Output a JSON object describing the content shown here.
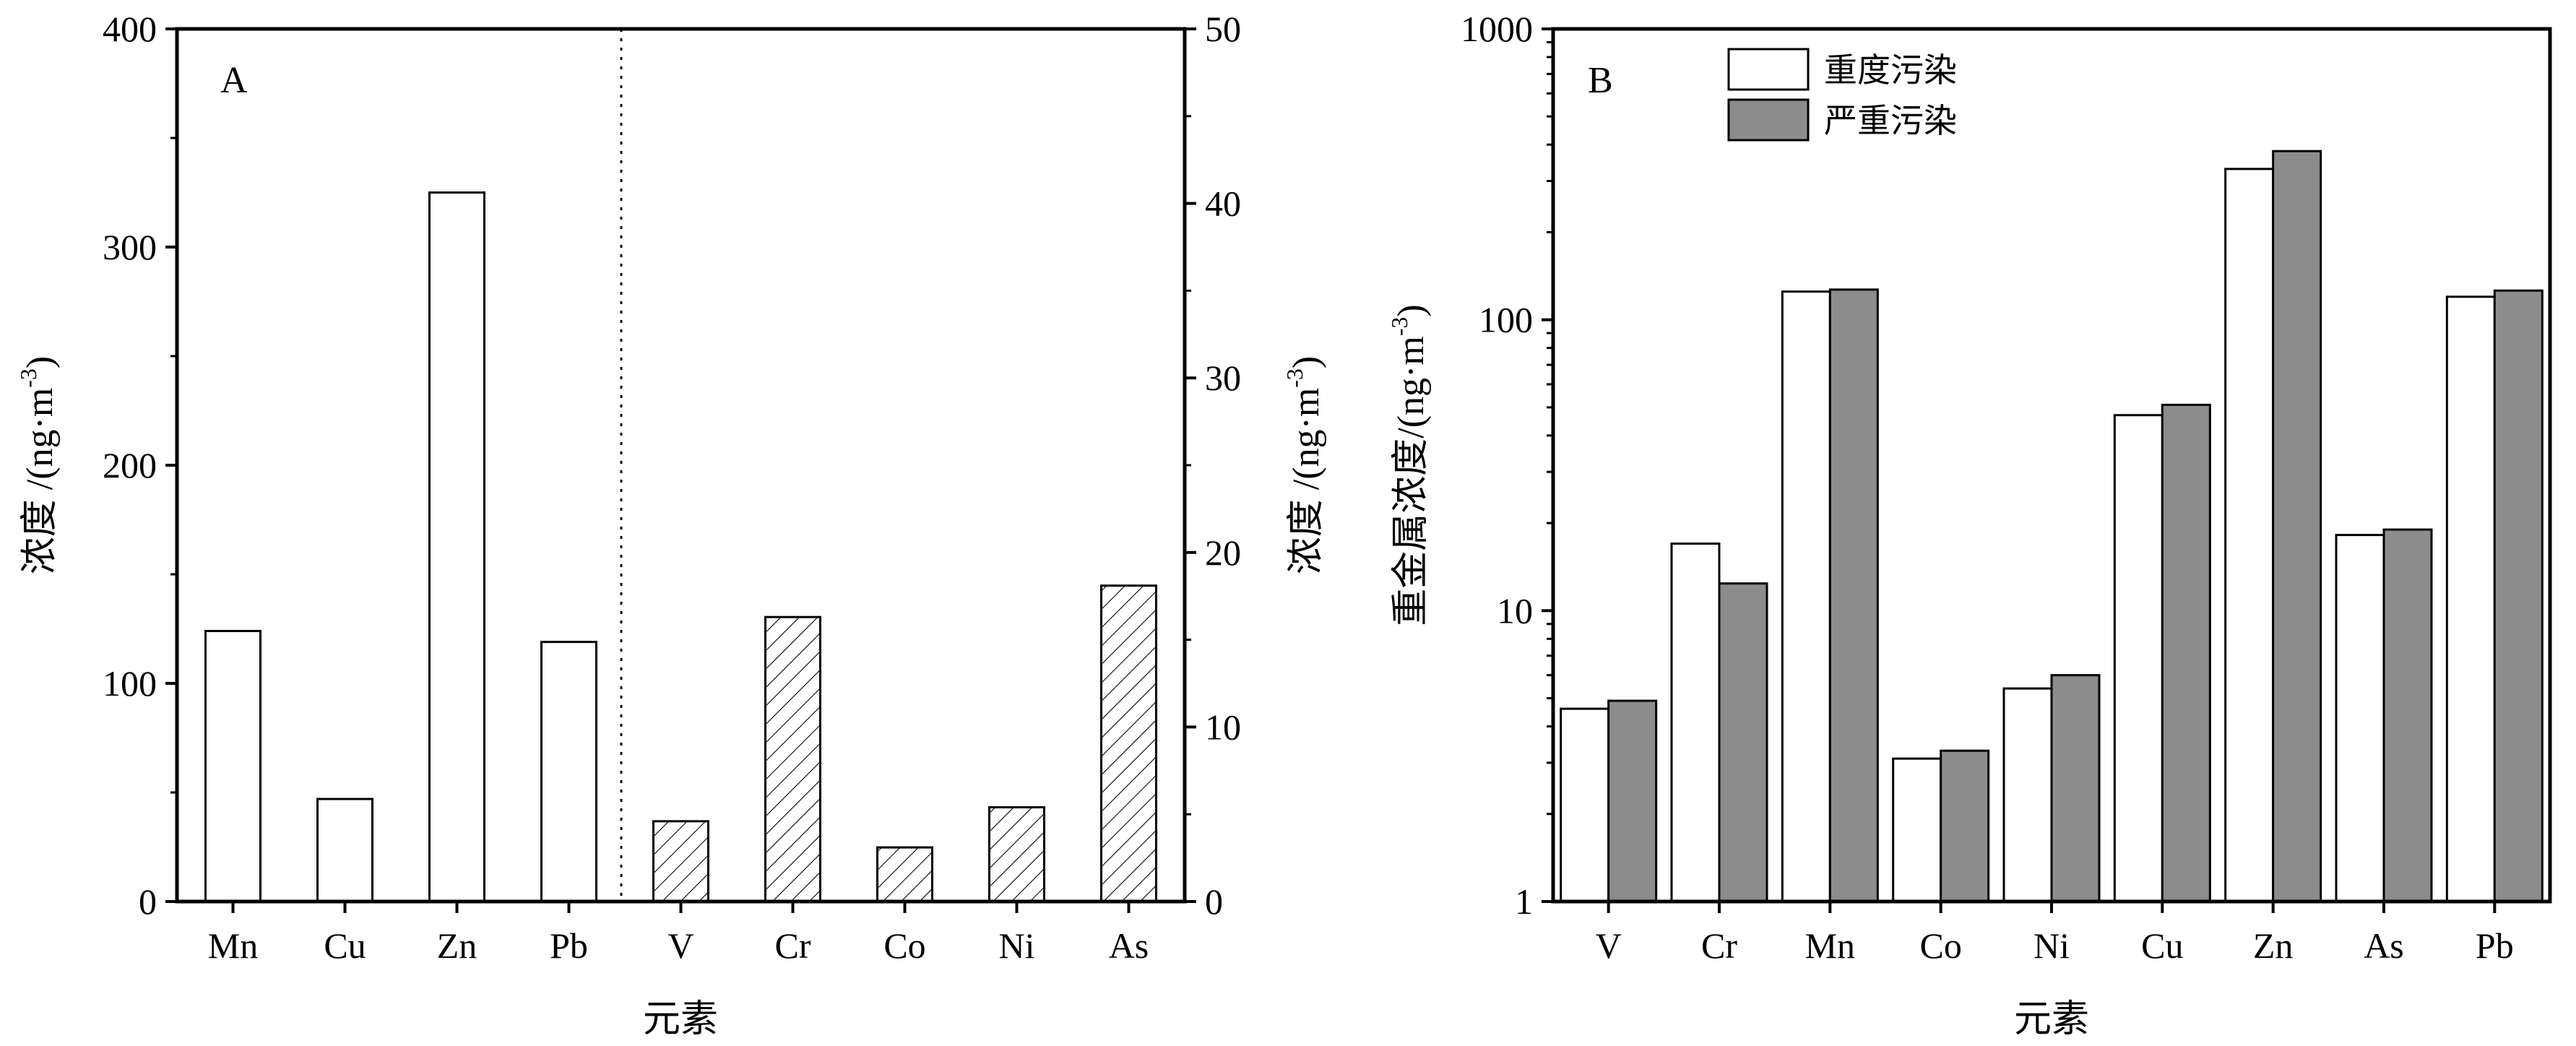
{
  "chart_data": [
    {
      "panel": "A",
      "type": "bar",
      "categories": [
        "Mn",
        "Cu",
        "Zn",
        "Pb",
        "V",
        "Cr",
        "Co",
        "Ni",
        "As"
      ],
      "xlabel": "元素",
      "left_axis": {
        "label": "浓度 /(ng·m-3)",
        "label_main": "浓度 /(ng·m",
        "label_sup": "-3",
        "label_close": ")",
        "ylim": [
          0,
          400
        ],
        "ticks": [
          "0",
          "100",
          "200",
          "300",
          "400"
        ],
        "categories": [
          "Mn",
          "Cu",
          "Zn",
          "Pb"
        ],
        "values": [
          124,
          47,
          325,
          119
        ],
        "fill": "none"
      },
      "right_axis": {
        "label": "浓度 /(ng·m-3)",
        "label_main": "浓度 /(ng·m",
        "label_sup": "-3",
        "label_close": ")",
        "ylim": [
          0,
          50
        ],
        "ticks": [
          "0",
          "10",
          "20",
          "30",
          "40",
          "50"
        ],
        "categories": [
          "V",
          "Cr",
          "Co",
          "Ni",
          "As"
        ],
        "values": [
          4.6,
          16.3,
          3.1,
          5.4,
          18.1
        ],
        "fill": "hatched"
      },
      "divider": "dotted line between Pb and V"
    },
    {
      "panel": "B",
      "type": "bar",
      "scale": "log",
      "categories": [
        "V",
        "Cr",
        "Mn",
        "Co",
        "Ni",
        "Cu",
        "Zn",
        "As",
        "Pb"
      ],
      "xlabel": "元素",
      "ylabel": "重金属浓度/(ng·m-3)",
      "ylabel_main": "重金属浓度/(ng·m",
      "ylabel_sup": "-3",
      "ylabel_close": ")",
      "ylim": [
        1,
        1000
      ],
      "ticks": [
        "1",
        "10",
        "100",
        "1000"
      ],
      "legend_position": "top-left",
      "series": [
        {
          "name": "重度污染",
          "color": "#ffffff",
          "values": [
            4.6,
            17,
            125,
            3.1,
            5.4,
            47,
            330,
            18.2,
            120
          ]
        },
        {
          "name": "严重污染",
          "color": "#8c8c8c",
          "values": [
            4.9,
            12.4,
            127,
            3.3,
            6.0,
            51,
            380,
            19.0,
            126
          ]
        }
      ]
    }
  ]
}
